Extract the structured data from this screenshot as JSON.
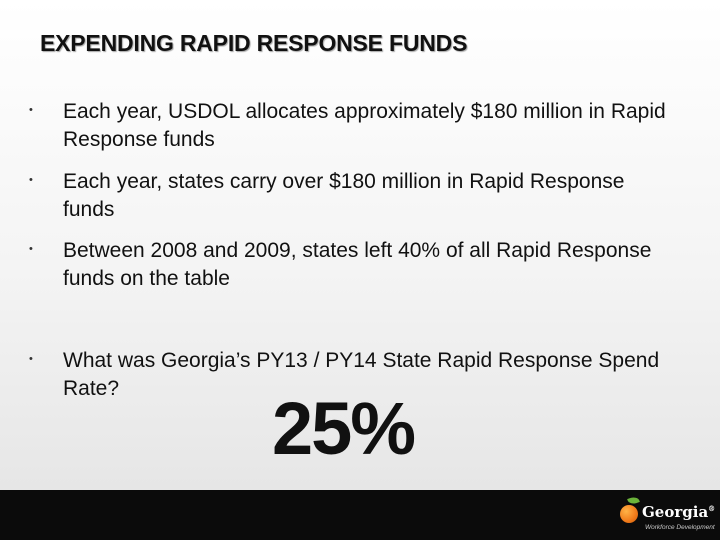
{
  "slide": {
    "title": "EXPENDING RAPID RESPONSE FUNDS",
    "bullets": [
      {
        "symbol": "•",
        "text": "Each year, USDOL allocates approximately $180 million in Rapid Response funds"
      },
      {
        "symbol": "•",
        "text": "Each year, states carry over $180 million in Rapid Response funds"
      },
      {
        "symbol": "•",
        "text": "Between 2008 and 2009, states left 40% of all Rapid Response funds on the table"
      },
      {
        "symbol": "•",
        "text": "What was Georgia’s PY13 / PY14 State Rapid Response Spend Rate?"
      }
    ],
    "answer": "25%"
  },
  "footer": {
    "logo_text": "Georgia",
    "logo_mark": "®",
    "logo_subtext": "Workforce Development",
    "logo_icon": "peach-icon"
  }
}
